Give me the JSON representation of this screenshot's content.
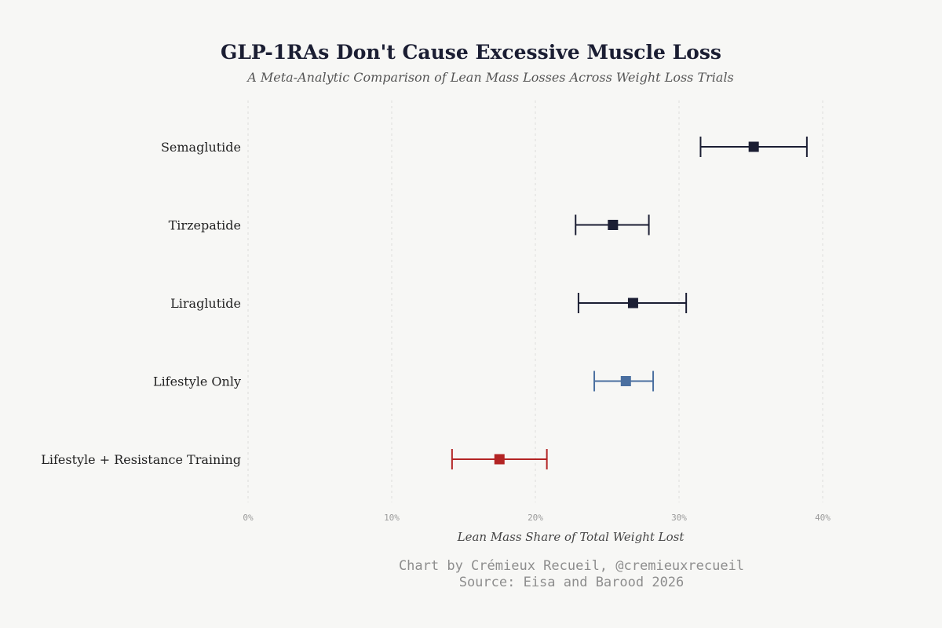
{
  "chart_data": {
    "type": "dot-errorbar",
    "title": "GLP-1RAs Don't Cause Excessive Muscle Loss",
    "subtitle": "A Meta-Analytic Comparison of Lean Mass Losses Across Weight Loss Trials",
    "xlabel": "Lean Mass Share of Total Weight Lost",
    "xlim": [
      0,
      40
    ],
    "xticks": [
      0,
      10,
      20,
      30,
      40
    ],
    "xtick_labels": [
      "0%",
      "10%",
      "20%",
      "30%",
      "40%"
    ],
    "grid": "vertical-dashed",
    "series": [
      {
        "label": "Semaglutide",
        "estimate": 35.2,
        "lower": 31.5,
        "upper": 38.9,
        "color": "#1b1e33"
      },
      {
        "label": "Tirzepatide",
        "estimate": 25.4,
        "lower": 22.8,
        "upper": 27.9,
        "color": "#1b1e33"
      },
      {
        "label": "Liraglutide",
        "estimate": 26.8,
        "lower": 23.0,
        "upper": 30.5,
        "color": "#1b1e33"
      },
      {
        "label": "Lifestyle Only",
        "estimate": 26.3,
        "lower": 24.1,
        "upper": 28.2,
        "color": "#4a6fa0"
      },
      {
        "label": "Lifestyle + Resistance Training",
        "estimate": 17.5,
        "lower": 14.2,
        "upper": 20.8,
        "color": "#b32424"
      }
    ]
  },
  "caption": {
    "credit": "Chart by Crémieux Recueil, @cremieuxrecueil",
    "source": "Source: Eisa and Barood 2026"
  }
}
